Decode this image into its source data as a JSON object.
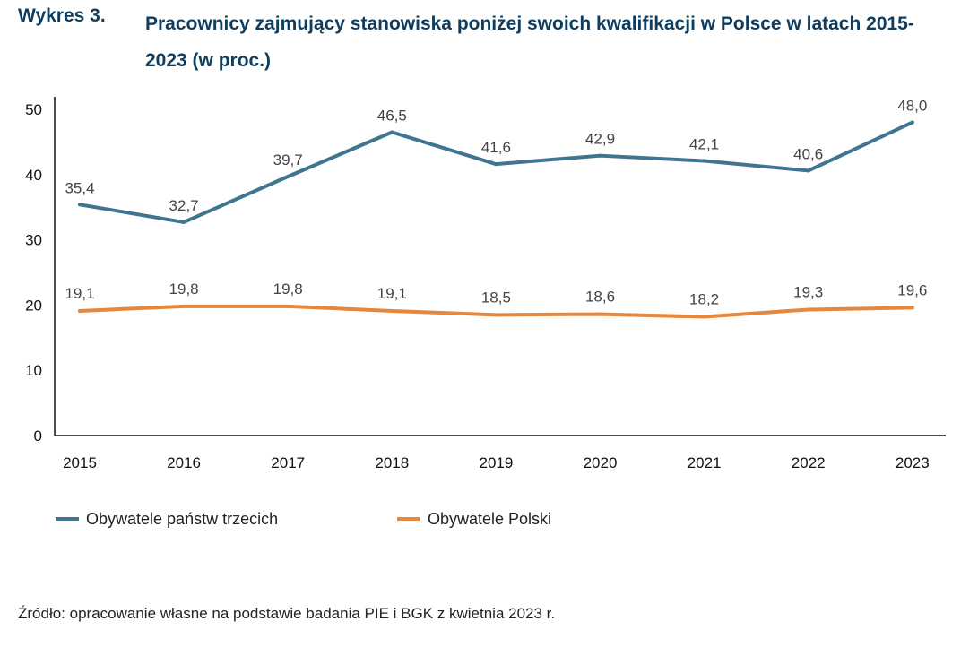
{
  "header": {
    "figure_number": "Wykres 3.",
    "title": "Pracownicy zajmujący stanowiska poniżej swoich kwalifikacji w Polsce w latach 2015-2023 (w proc.)"
  },
  "source": "Źródło: opracowanie własne na podstawie badania PIE i BGK z kwietnia 2023 r.",
  "chart_data": {
    "type": "line",
    "title": "Pracownicy zajmujący stanowiska poniżej swoich kwalifikacji w Polsce w latach 2015-2023 (w proc.)",
    "categories": [
      "2015",
      "2016",
      "2017",
      "2018",
      "2019",
      "2020",
      "2021",
      "2022",
      "2023"
    ],
    "series": [
      {
        "name": "Obywatele państw trzecich",
        "color": "#3f7590",
        "values": [
          35.4,
          32.7,
          39.7,
          46.5,
          41.6,
          42.9,
          42.1,
          40.6,
          48.0
        ],
        "labels": [
          "35,4",
          "32,7",
          "39,7",
          "46,5",
          "41,6",
          "42,9",
          "42,1",
          "40,6",
          "48,0"
        ]
      },
      {
        "name": "Obywatele Polski",
        "color": "#e8873a",
        "values": [
          19.1,
          19.8,
          19.8,
          19.1,
          18.5,
          18.6,
          18.2,
          19.3,
          19.6
        ],
        "labels": [
          "19,1",
          "19,8",
          "19,8",
          "19,1",
          "18,5",
          "18,6",
          "18,2",
          "19,3",
          "19,6"
        ]
      }
    ],
    "yticks": [
      "0",
      "10",
      "20",
      "30",
      "40",
      "50"
    ],
    "ylim": [
      0,
      50
    ],
    "grid": false,
    "legend": "bottom-left"
  }
}
